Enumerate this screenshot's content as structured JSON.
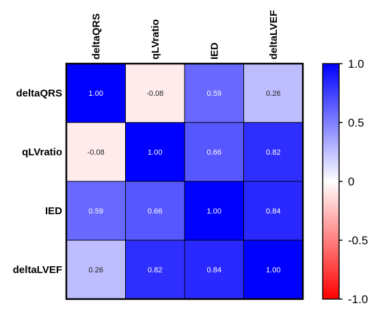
{
  "chart_data": {
    "type": "heatmap",
    "rows": [
      "deltaQRS",
      "qLVratio",
      "IED",
      "deltaLVEF"
    ],
    "columns": [
      "deltaQRS",
      "qLVratio",
      "IED",
      "deltaLVEF"
    ],
    "values": [
      [
        1.0,
        -0.08,
        0.59,
        0.26
      ],
      [
        -0.08,
        1.0,
        0.66,
        0.82
      ],
      [
        0.59,
        0.66,
        1.0,
        0.84
      ],
      [
        0.26,
        0.82,
        0.84,
        1.0
      ]
    ],
    "value_labels": [
      [
        "1.00",
        "-0.08",
        "0.59",
        "0.26"
      ],
      [
        "-0.08",
        "1.00",
        "0.66",
        "0.82"
      ],
      [
        "0.59",
        "0.66",
        "1.00",
        "0.84"
      ],
      [
        "0.26",
        "0.82",
        "0.84",
        "1.00"
      ]
    ],
    "colorbar": {
      "range": [
        -1.0,
        1.0
      ],
      "ticks": [
        1.0,
        0.5,
        0,
        -0.5,
        -1.0
      ],
      "tick_labels": [
        "1.0",
        "0.5",
        "0",
        "-0.5",
        "-1.0"
      ],
      "colors": {
        "high": "#0000ff",
        "mid": "#ffffff",
        "low": "#ff0000"
      }
    }
  }
}
